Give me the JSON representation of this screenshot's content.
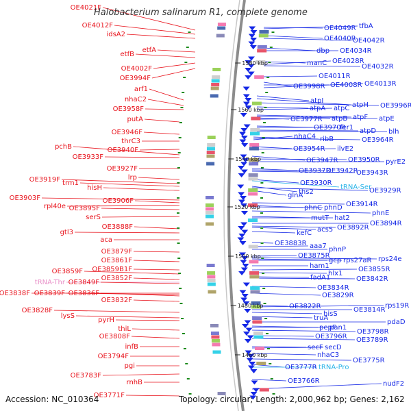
{
  "title": "Halobacterium salinarum R1, complete genome",
  "footer": {
    "accession": "Accession: NC_010364",
    "summary": "Topology: circular; Length: 2,000,962 bp; Genes: 2,162"
  },
  "colors": {
    "forward": "#e8121b",
    "reverse": "#1528e6",
    "rna": "#e890c8",
    "rna_reverse": "#2ab4e8",
    "backbone": "#8c8c8c",
    "tick": "#1a8a1a"
  },
  "scale_marks": [
    "1580 kbp",
    "1560 kbp",
    "1540 kbp",
    "1520 kbp",
    "1500 kbp",
    "1480 kbp",
    "1460 kbp"
  ],
  "left_labels": [
    "OE4021F",
    "OE4012F",
    "idsA2",
    "etfA",
    "etfB",
    "OE4002F",
    "OE3994F",
    "arf1",
    "nhaC2",
    "OE3958F",
    "putA",
    "OE3946F",
    "thrC3",
    "OE3940F",
    "pchB",
    "OE3933F",
    "OE3927F",
    "lrp",
    "OE3919F",
    "trm1",
    "hisH",
    "OE3903F",
    "OE3906F",
    "rpl40e",
    "OE3895F",
    "serS",
    "OE3888F",
    "gtl3",
    "aca",
    "OE3879F",
    "OE3861F",
    "OE3859B1F",
    "OE3859F",
    "OE3852F",
    "tRNA-Thr",
    "OE3849F",
    "OE3838F",
    "OE3839F",
    "OE3836F",
    "OE3832F",
    "OE3828F",
    "lysS",
    "pyrH",
    "thiL",
    "OE3808F",
    "infB",
    "OE3794F",
    "pgi",
    "OE3783F",
    "rnhB",
    "OE3771F"
  ],
  "right_labels": [
    "OE4049R",
    "tfbA",
    "OE4040R",
    "OE4042R",
    "dbp",
    "OE4034R",
    "manC",
    "OE4028R",
    "OE4032R",
    "OE4011R",
    "OE3998R",
    "OE4008R",
    "OE4013R",
    "atpI",
    "atpH",
    "OE3996R",
    "atpA",
    "atpC",
    "OE3977R",
    "atpB",
    "atpF",
    "atpE",
    "OE3970R",
    "fer1",
    "atpD",
    "blh",
    "ribB",
    "OE3964R",
    "nhaC4",
    "OE3954R",
    "ilvE2",
    "OE3947R",
    "OE3950R",
    "pyrE2",
    "OE3937R",
    "OE3942R",
    "OE3943R",
    "OE3930R",
    "tRNA-Ser",
    "ths2",
    "OE3929R",
    "glnA",
    "OE3914R",
    "phnC",
    "phnD",
    "phnE",
    "mutT",
    "hat2",
    "acs5",
    "OE3892R",
    "OE3894R",
    "kefC",
    "OE3883R",
    "aaa7",
    "phnP",
    "OE3875R",
    "gcp",
    "rps27aR",
    "rps24e",
    "ham1",
    "OE3855R",
    "hlx1",
    "fadA1",
    "OE3842R",
    "OE3834R",
    "OE3829R",
    "OE3822R",
    "hisS",
    "OE3814R",
    "rps19R",
    "truA",
    "pdaD",
    "pepF",
    "pan1",
    "OE3798R",
    "OE3796R",
    "OE3789R",
    "secF",
    "secD",
    "nhaC3",
    "OE3775R",
    "OE3777R",
    "tRNA-Pro",
    "OE3766R",
    "nudF2"
  ]
}
